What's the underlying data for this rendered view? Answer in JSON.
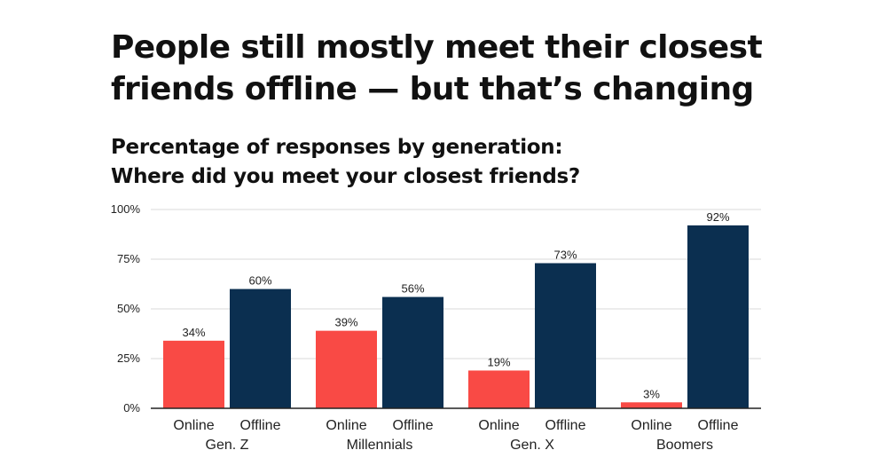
{
  "title": "People still mostly meet their closest friends offline — but that’s changing",
  "subtitle": {
    "line1": "Percentage of responses by generation:",
    "line2": "Where did you meet your closest friends?"
  },
  "colors": {
    "online": "#f94a45",
    "offline": "#0b2f50",
    "grid": "#d9d9d9",
    "axis": "#222222"
  },
  "chart_data": {
    "type": "bar",
    "categories": [
      "Gen. Z",
      "Millennials",
      "Gen. X",
      "Boomers"
    ],
    "sub_labels": [
      "Online",
      "Offline"
    ],
    "series": [
      {
        "key": "online",
        "values": [
          34,
          39,
          19,
          3
        ]
      },
      {
        "key": "offline",
        "values": [
          60,
          56,
          73,
          92
        ]
      }
    ],
    "value_labels": [
      [
        "34%",
        "60%"
      ],
      [
        "39%",
        "56%"
      ],
      [
        "19%",
        "73%"
      ],
      [
        "3%",
        "92%"
      ]
    ],
    "yticks": [
      0,
      25,
      50,
      75,
      100
    ],
    "ytick_labels": [
      "0%",
      "25%",
      "50%",
      "75%",
      "100%"
    ],
    "ylim": [
      0,
      100
    ],
    "grid": true,
    "legend": "none"
  }
}
